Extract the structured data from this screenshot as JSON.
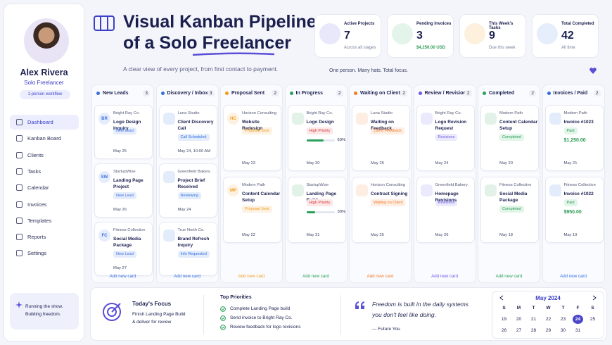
{
  "sidebar": {
    "name": "Alex Rivera",
    "role": "Solo Freelancer",
    "badge": "1-person workflow",
    "nav": [
      "Dashboard",
      "Kanban Board",
      "Clients",
      "Tasks",
      "Calendar",
      "Invoices",
      "Templates",
      "Reports",
      "Settings"
    ],
    "footer": [
      "Running the show.",
      "Building freedom."
    ]
  },
  "header": {
    "title": [
      "Visual Kanban Pipeline",
      "of a Solo Freelancer"
    ],
    "subtitle": "A clear view of every project, from first contact to payment.",
    "tagline": "One person. Many hats. Total focus."
  },
  "stats": [
    {
      "label": "Active Projects",
      "value": 7,
      "sub": "Across all stages",
      "color": "#e9e8fb"
    },
    {
      "label": "Pending Invoices",
      "value": 3,
      "sub": "$4,250.00 USD",
      "color": "#e3f5ea"
    },
    {
      "label": "This Week's Tasks",
      "value": 9,
      "sub": "Due this week",
      "color": "#fdf0dc"
    },
    {
      "label": "Total Completed",
      "value": 42,
      "sub": "All time",
      "color": "#e6eefc"
    }
  ],
  "columns": [
    {
      "name": "New Leads",
      "count": 3,
      "color": "#3b6fe0",
      "add": "Add new card",
      "cards": [
        {
          "initials": "BR",
          "client": "Bright Ray Co.",
          "title": "Logo Design Inquiry",
          "tag": "New Lead",
          "date": "May 25"
        },
        {
          "initials": "SW",
          "client": "StartupWise",
          "title": "Landing Page Project",
          "tag": "New Lead",
          "date": "May 26"
        },
        {
          "initials": "FC",
          "client": "Fitness Collective",
          "title": "Social Media Package",
          "tag": "New Lead",
          "date": "May 27"
        }
      ]
    },
    {
      "name": "Discovery / Inbox",
      "count": 3,
      "color": "#2f6fe0",
      "add": "Add new card",
      "cards": [
        {
          "client": "Luna Studio",
          "title": "Client Discovery Call",
          "tag": "Call Scheduled",
          "date": "May 24, 10:00 AM"
        },
        {
          "client": "Greenfield Bakery",
          "title": "Project Brief Received",
          "tag": "Reviewing",
          "date": "May 24"
        },
        {
          "client": "True North Co.",
          "title": "Brand Refresh Inquiry",
          "tag": "Info Requested"
        }
      ]
    },
    {
      "name": "Proposal Sent",
      "count": 2,
      "color": "#f29b1d",
      "add": "Add new card",
      "cards": [
        {
          "initials": "HC",
          "client": "Horizon Consulting",
          "title": "Website Redesign",
          "tag": "Proposal Sent",
          "date": "May 23"
        },
        {
          "initials": "MP",
          "client": "Modern Path",
          "title": "Content Calendar Setup",
          "tag": "Proposal Sent",
          "date": "May 22"
        }
      ]
    },
    {
      "name": "In Progress",
      "count": 2,
      "color": "#2aa05a",
      "add": "Add new card",
      "cards": [
        {
          "client": "Bright Ray Co.",
          "title": "Logo Design",
          "tag": "High Priority",
          "progress": 60,
          "progress_label": "60%",
          "date": "May 30"
        },
        {
          "client": "StartupWise",
          "title": "Landing Page Build",
          "tag": "High Priority",
          "progress": 30,
          "progress_label": "30%",
          "date": "May 31"
        }
      ]
    },
    {
      "name": "Waiting on Client",
      "count": 2,
      "color": "#f07a2a",
      "add": "Add new card",
      "cards": [
        {
          "client": "Luna Studio",
          "title": "Waiting on Feedback",
          "tag": "Client Feedback",
          "date": "May 26"
        },
        {
          "client": "Horizon Consulting",
          "title": "Contract Signing",
          "tag": "Waiting on Client",
          "date": "May 25"
        }
      ]
    },
    {
      "name": "Review / Revisions",
      "count": 2,
      "color": "#6c5ce7",
      "add": "Add new card",
      "cards": [
        {
          "client": "Bright Ray Co.",
          "title": "Logo Revision Request",
          "tag": "Revisions",
          "date": "May 24"
        },
        {
          "client": "Greenfield Bakery",
          "title": "Homepage Revisions",
          "tag": "Revisions",
          "date": "May 26"
        }
      ]
    },
    {
      "name": "Completed",
      "count": 2,
      "color": "#2aa05a",
      "add": "Add new card",
      "cards": [
        {
          "client": "Modern Path",
          "title": "Content Calendar Setup",
          "tag": "Completed",
          "date": "May 20"
        },
        {
          "client": "Fitness Collective",
          "title": "Social Media Package",
          "tag": "Completed",
          "date": "May 18"
        }
      ]
    },
    {
      "name": "Invoices / Paid",
      "count": 2,
      "color": "#2f6fe0",
      "add": "Add new card",
      "cards": [
        {
          "client": "Modern Path",
          "title": "Invoice #1023",
          "tag": "Paid",
          "amount": "$1,250.00",
          "date": "May 21"
        },
        {
          "client": "Fitness Collective",
          "title": "Invoice #1022",
          "tag": "Paid",
          "amount": "$950.00",
          "date": "May 19"
        }
      ]
    }
  ],
  "focus": {
    "title": "Today's Focus",
    "lines": [
      "Finish Landing Page Build",
      "& deliver for review"
    ]
  },
  "priorities": {
    "title": "Top Priorities",
    "items": [
      "Complete Landing Page build",
      "Send invoice to Bright Ray Co.",
      "Review feedback for logo revisions"
    ]
  },
  "quote": {
    "lines": [
      "Freedom is built in the daily systems",
      "you don't feel like doing."
    ],
    "author": "— Future You"
  },
  "calendar": {
    "month": "May 2024",
    "weekdays": [
      "S",
      "M",
      "T",
      "W",
      "T",
      "F",
      "S"
    ],
    "weeks": [
      [
        19,
        20,
        21,
        22,
        23,
        24,
        25
      ],
      [
        26,
        27,
        28,
        29,
        30,
        31
      ]
    ],
    "selected": 24
  }
}
